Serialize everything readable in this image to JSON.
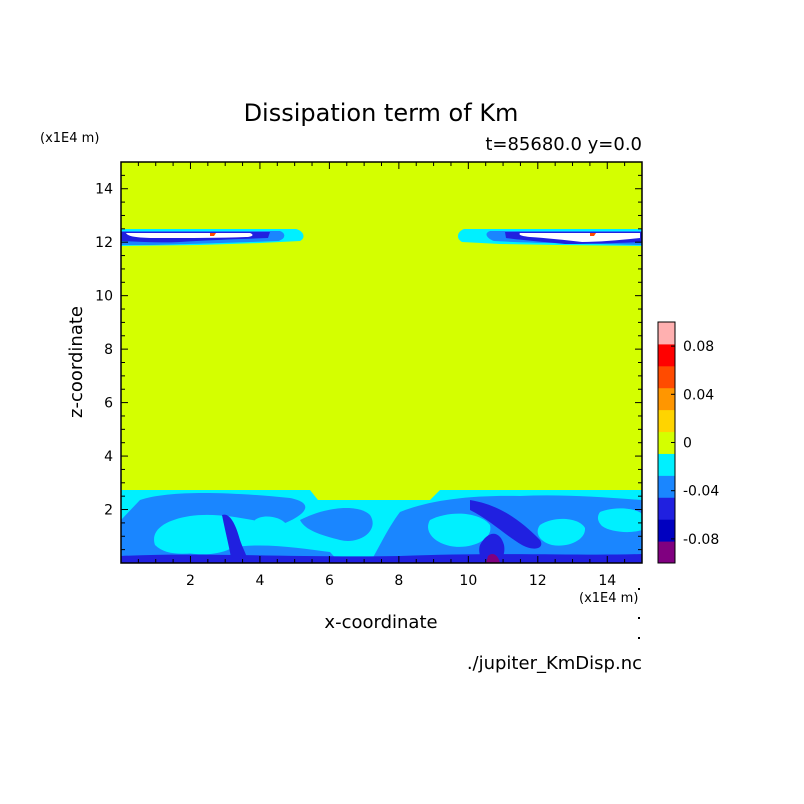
{
  "chart_data": {
    "type": "heatmap",
    "title": "Dissipation term of Km",
    "subtitle": "t=85680.0 y=0.0",
    "xlabel": "x-coordinate",
    "ylabel": "z-coordinate",
    "x_unit": "(x1E4 m)",
    "y_unit": "(x1E4 m)",
    "source_file": "./jupiter_KmDisp.nc",
    "xlim": [
      0,
      15
    ],
    "ylim": [
      0,
      15
    ],
    "x_ticks": [
      2,
      4,
      6,
      8,
      10,
      12,
      14
    ],
    "y_ticks": [
      2,
      4,
      6,
      8,
      10,
      12,
      14
    ],
    "colorbar": {
      "levels": [
        -0.1,
        -0.08,
        -0.06,
        -0.04,
        -0.02,
        0,
        0.02,
        0.04,
        0.06,
        0.08,
        0.1
      ],
      "colors": [
        "#800080",
        "#0000c0",
        "#2020e0",
        "#1a86ff",
        "#00f0ff",
        "#d4ff00",
        "#ffd400",
        "#ff9600",
        "#ff4b00",
        "#ff0000",
        "#ffb0b0"
      ],
      "tick_labels": [
        "0.08",
        "0.04",
        "0",
        "-0.04",
        "-0.08"
      ],
      "tick_values": [
        0.08,
        0.04,
        0,
        -0.04,
        -0.08
      ]
    },
    "background_value": 0,
    "features": [
      {
        "region": "upper-layer-left",
        "x_range": [
          0,
          5.2
        ],
        "z_range": [
          11.8,
          12.4
        ],
        "value_range": [
          -0.08,
          0.1
        ]
      },
      {
        "region": "upper-layer-right",
        "x_range": [
          9.6,
          15
        ],
        "z_range": [
          11.8,
          12.4
        ],
        "value_range": [
          -0.08,
          0.1
        ]
      },
      {
        "region": "lower-boundary-layer",
        "x_range": [
          0,
          15
        ],
        "z_range": [
          0,
          2.7
        ],
        "value_range": [
          -0.1,
          -0.02
        ]
      }
    ]
  }
}
